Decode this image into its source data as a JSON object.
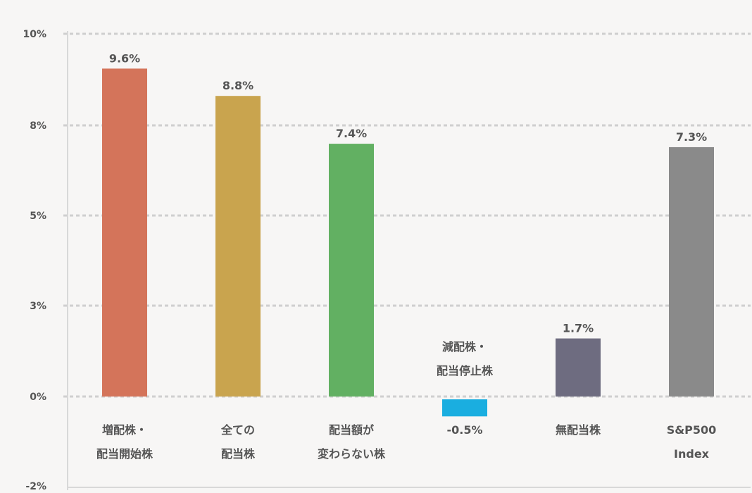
{
  "chart_data": {
    "type": "bar",
    "categories": [
      "増配株・\n配当開始株",
      "全ての\n配当株",
      "配当額が\n変わらない株",
      "減配株・\n配当停止株",
      "無配当株",
      "S&P500\nIndex"
    ],
    "values": [
      9.6,
      8.8,
      7.4,
      -0.5,
      1.7,
      7.3
    ],
    "data_labels": [
      "9.6%",
      "8.8%",
      "7.4%",
      "-0.5%",
      "1.7%",
      "7.3%"
    ],
    "colors": [
      "#d4745a",
      "#c9a44e",
      "#62b062",
      "#1aaee0",
      "#6e6c80",
      "#8a8a8a"
    ],
    "y_ticks": [
      {
        "value": 10,
        "label": "10%"
      },
      {
        "value": 8,
        "label": "8%"
      },
      {
        "value": 5,
        "label": "5%"
      },
      {
        "value": 3,
        "label": "3%"
      },
      {
        "value": 0,
        "label": "0%"
      },
      {
        "value": -2,
        "label": "-2%"
      }
    ],
    "ylim": [
      -2,
      10
    ],
    "grid": true,
    "gridline_color": "#cfcfcf",
    "axis_color": "#d8d8d8",
    "text_color": "#555555",
    "title": "",
    "xlabel": "",
    "ylabel": ""
  }
}
